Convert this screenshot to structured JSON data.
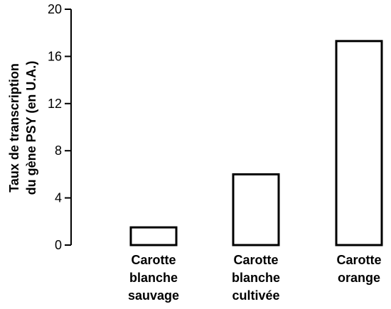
{
  "chart_data": {
    "type": "bar",
    "y_label": "Taux de transcription\ndu gène PSY (en U.A.)",
    "categories": [
      "Carotte\nblanche\nsauvage",
      "Carotte\nblanche\ncultivée",
      "Carotte\norange"
    ],
    "values": [
      1.5,
      6,
      17.3
    ],
    "color": "#ffffff",
    "ylim": [
      0,
      20
    ],
    "yticks": [
      0,
      4,
      8,
      12,
      16,
      20
    ],
    "grid": false
  }
}
